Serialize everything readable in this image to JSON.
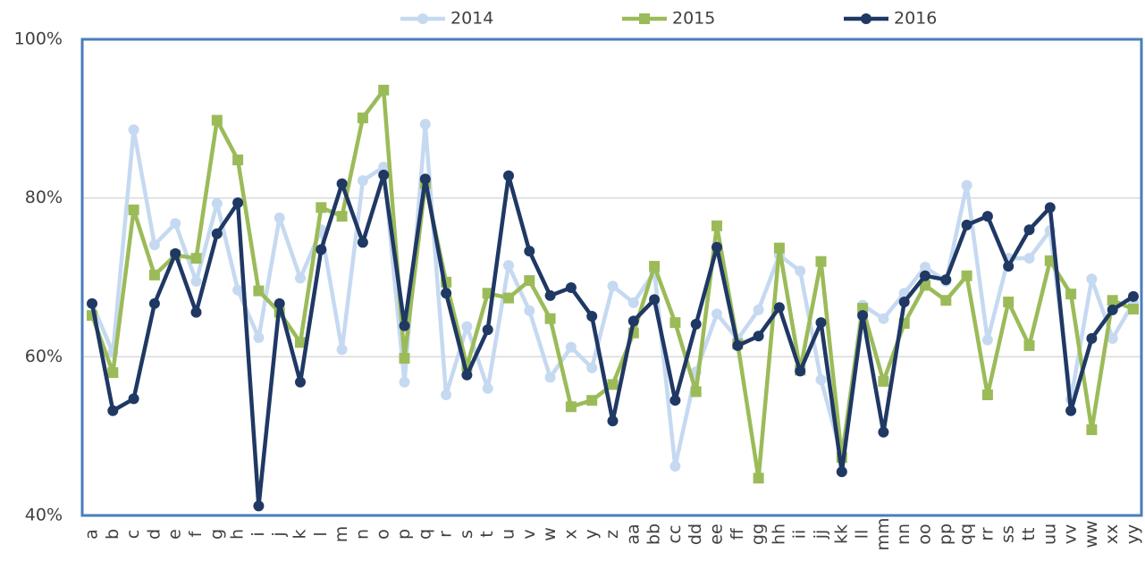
{
  "chart_data": {
    "type": "line",
    "categories": [
      "a",
      "b",
      "c",
      "d",
      "e",
      "f",
      "g",
      "h",
      "i",
      "j",
      "k",
      "l",
      "m",
      "n",
      "o",
      "p",
      "q",
      "r",
      "s",
      "t",
      "u",
      "v",
      "w",
      "x",
      "y",
      "z",
      "aa",
      "bb",
      "cc",
      "dd",
      "ee",
      "ff",
      "gg",
      "hh",
      "ii",
      "jj",
      "kk",
      "ll",
      "mm",
      "nn",
      "oo",
      "pp",
      "qq",
      "rr",
      "ss",
      "tt",
      "uu",
      "vv",
      "ww",
      "xx",
      "yy"
    ],
    "series": [
      {
        "name": "2014",
        "color": "#c5d9f1",
        "marker": "circle",
        "values": [
          66.7,
          60.5,
          88.6,
          74.1,
          76.8,
          69.5,
          79.3,
          68.4,
          62.4,
          77.5,
          69.9,
          76.0,
          60.9,
          82.2,
          83.9,
          56.8,
          89.3,
          55.2,
          63.8,
          56.0,
          71.5,
          65.8,
          57.4,
          61.2,
          58.6,
          68.9,
          66.8,
          70.7,
          46.2,
          58.1,
          65.4,
          62.2,
          65.9,
          72.8,
          70.8,
          57.1,
          47.5,
          66.5,
          64.8,
          68.0,
          71.3,
          69.5,
          81.6,
          62.1,
          72.4,
          72.4,
          75.9,
          54.6,
          69.8,
          62.3,
          66.8
        ]
      },
      {
        "name": "2015",
        "color": "#9bbb59",
        "marker": "square",
        "values": [
          65.2,
          58.0,
          78.5,
          70.3,
          72.8,
          72.4,
          89.8,
          84.8,
          68.3,
          65.6,
          61.8,
          78.8,
          77.7,
          90.1,
          93.6,
          59.8,
          81.8,
          69.4,
          58.8,
          68.0,
          67.4,
          69.6,
          64.8,
          53.7,
          54.5,
          56.5,
          63.0,
          71.4,
          64.3,
          55.6,
          76.5,
          61.6,
          44.7,
          73.7,
          58.3,
          72.0,
          47.3,
          66.1,
          56.9,
          64.2,
          69.0,
          67.1,
          70.2,
          55.2,
          66.9,
          61.4,
          72.1,
          67.9,
          50.8,
          67.1,
          66.0
        ]
      },
      {
        "name": "2016",
        "color": "#1f3864",
        "marker": "circle",
        "values": [
          66.7,
          53.2,
          54.7,
          66.7,
          73.0,
          65.6,
          75.5,
          79.4,
          41.2,
          66.7,
          56.8,
          73.5,
          81.8,
          74.4,
          82.9,
          63.9,
          82.4,
          68.0,
          57.7,
          63.4,
          82.8,
          73.3,
          67.7,
          68.7,
          65.1,
          51.9,
          64.5,
          67.2,
          54.5,
          64.1,
          73.8,
          61.4,
          62.6,
          66.2,
          58.2,
          64.3,
          45.5,
          65.2,
          50.5,
          66.9,
          70.2,
          69.7,
          76.6,
          77.7,
          71.4,
          76.0,
          78.8,
          53.2,
          62.3,
          65.9,
          67.6
        ]
      }
    ],
    "ylim": [
      40,
      100
    ],
    "yticks": [
      {
        "value": 40,
        "label": "40%"
      },
      {
        "value": 60,
        "label": "60%"
      },
      {
        "value": 80,
        "label": "80%"
      },
      {
        "value": 100,
        "label": "100%"
      }
    ],
    "grid": true,
    "legend": "top"
  }
}
